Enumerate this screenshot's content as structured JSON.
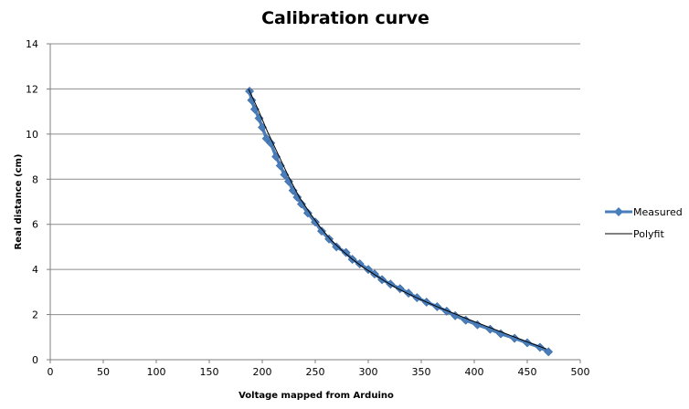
{
  "chart_data": {
    "type": "line",
    "title": "Calibration curve",
    "xlabel": "Voltage mapped from Arduino",
    "ylabel": "Real distance (cm)",
    "xlim": [
      0,
      500
    ],
    "ylim": [
      0,
      14
    ],
    "xticks": [
      0,
      50,
      100,
      150,
      200,
      250,
      300,
      350,
      400,
      450,
      500
    ],
    "yticks": [
      0,
      2,
      4,
      6,
      8,
      10,
      12,
      14
    ],
    "grid": true,
    "legend_position": "right",
    "colors": {
      "measured": "#4a7ebb",
      "polyfit": "#000000",
      "grid": "#8c8c8c"
    },
    "series": [
      {
        "name": "Measured",
        "marker": "diamond",
        "x": [
          188,
          190,
          193,
          197,
          200,
          204,
          208,
          213,
          217,
          221,
          225,
          229,
          233,
          237,
          243,
          250,
          256,
          263,
          270,
          279,
          285,
          292,
          300,
          306,
          313,
          321,
          330,
          338,
          346,
          355,
          365,
          374,
          382,
          392,
          403,
          415,
          425,
          438,
          450,
          462,
          470
        ],
        "y": [
          11.9,
          11.5,
          11.1,
          10.7,
          10.3,
          9.8,
          9.6,
          9.0,
          8.6,
          8.2,
          7.9,
          7.5,
          7.2,
          6.9,
          6.5,
          6.1,
          5.7,
          5.35,
          5.0,
          4.75,
          4.45,
          4.25,
          4.0,
          3.8,
          3.55,
          3.35,
          3.15,
          2.95,
          2.75,
          2.55,
          2.35,
          2.15,
          1.95,
          1.75,
          1.55,
          1.35,
          1.15,
          0.95,
          0.75,
          0.55,
          0.35
        ]
      },
      {
        "name": "Polyfit",
        "marker": "none",
        "x": [
          187,
          195,
          205,
          215,
          225,
          235,
          245,
          255,
          265,
          275,
          285,
          295,
          305,
          315,
          325,
          335,
          345,
          355,
          365,
          375,
          385,
          395,
          405,
          415,
          425,
          435,
          445,
          455,
          468
        ],
        "y": [
          12.0,
          11.2,
          10.1,
          9.1,
          8.1,
          7.2,
          6.5,
          5.85,
          5.3,
          4.85,
          4.45,
          4.1,
          3.8,
          3.5,
          3.22,
          2.98,
          2.76,
          2.55,
          2.35,
          2.16,
          1.97,
          1.78,
          1.6,
          1.42,
          1.24,
          1.06,
          0.88,
          0.7,
          0.48
        ]
      }
    ]
  }
}
